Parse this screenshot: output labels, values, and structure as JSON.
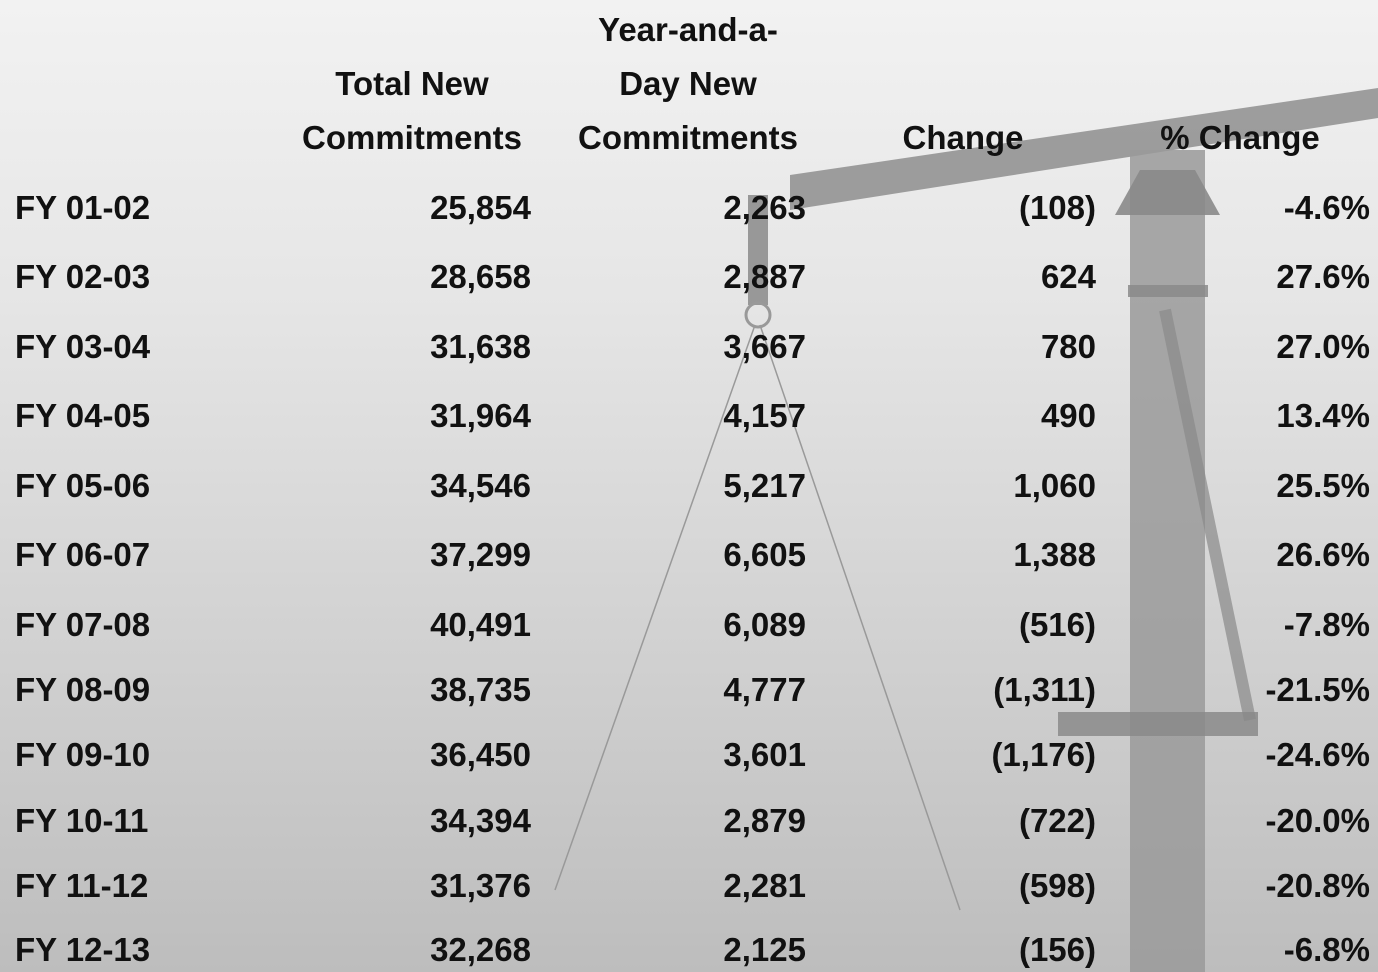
{
  "table": {
    "header": [
      "",
      "Total New Commitments",
      "Year-and-a-Day New Commitments",
      "Change",
      "% Change"
    ],
    "rows": [
      [
        "FY 01-02",
        "25,854",
        "2,263",
        "(108)",
        "-4.6%"
      ],
      [
        "FY 02-03",
        "28,658",
        "2,887",
        "624",
        "27.6%"
      ],
      [
        "FY 03-04",
        "31,638",
        "3,667",
        "780",
        "27.0%"
      ],
      [
        "FY 04-05",
        "31,964",
        "4,157",
        "490",
        "13.4%"
      ],
      [
        "FY 05-06",
        "34,546",
        "5,217",
        "1,060",
        "25.5%"
      ],
      [
        "FY 06-07",
        "37,299",
        "6,605",
        "1,388",
        "26.6%"
      ],
      [
        "FY 07-08",
        "40,491",
        "6,089",
        "(516)",
        "-7.8%"
      ],
      [
        "FY 08-09",
        "38,735",
        "4,777",
        "(1,311)",
        "-21.5%"
      ],
      [
        "FY 09-10",
        "36,450",
        "3,601",
        "(1,176)",
        "-24.6%"
      ],
      [
        "FY 10-11",
        "34,394",
        "2,879",
        "(722)",
        "-20.0%"
      ],
      [
        "FY 11-12",
        "31,376",
        "2,281",
        "(598)",
        "-20.8%"
      ],
      [
        "FY 12-13",
        "32,268",
        "2,125",
        "(156)",
        "-6.8%"
      ]
    ]
  }
}
